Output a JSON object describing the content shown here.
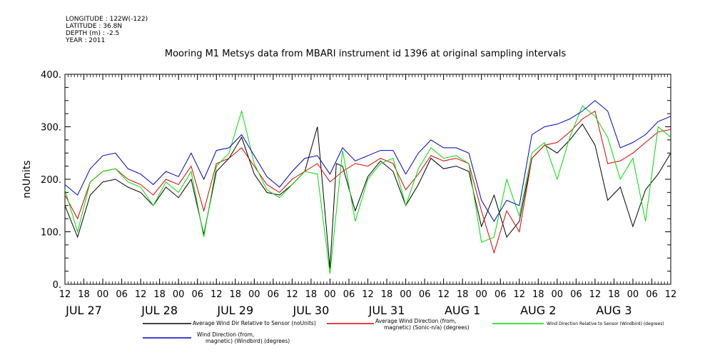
{
  "header": {
    "longitude": "LONGITUDE : 122W(-122)",
    "latitude": "LATITUDE : 36.8N",
    "depth": "DEPTH (m) : -2.5",
    "year": "YEAR : 2011"
  },
  "chart_data": {
    "type": "line",
    "title": "Mooring M1 Metsys data from MBARI instrument id 1396 at original sampling intervals",
    "ylabel": "noUnits",
    "ylim": [
      0,
      400
    ],
    "y_ticks": [
      "0.",
      "100.",
      "200.",
      "300.",
      "400."
    ],
    "y_tick_values": [
      0,
      100,
      200,
      300,
      400
    ],
    "x_hour_ticks": [
      "12",
      "18",
      "00",
      "06",
      "12",
      "18",
      "00",
      "06",
      "12",
      "18",
      "00",
      "06",
      "12",
      "18",
      "00",
      "06",
      "12",
      "18",
      "00",
      "06",
      "12",
      "18",
      "00",
      "06",
      "12",
      "18",
      "00",
      "06",
      "12",
      "18",
      "00",
      "06",
      "12"
    ],
    "x_day_labels": [
      "JUL 27",
      "JUL 28",
      "JUL 29",
      "JUL 30",
      "JUL 31",
      "AUG  1",
      "AUG  2",
      "AUG  3"
    ],
    "x_range_hours": [
      0,
      192
    ],
    "colors": {
      "black": "#000000",
      "red": "#dd0000",
      "green": "#00dd00",
      "blue": "#0000cc"
    },
    "series": [
      {
        "name": "Average Wind Dir Relative to Sensor (noUnits)",
        "color": "#000000",
        "x": [
          0,
          4,
          8,
          12,
          16,
          20,
          24,
          28,
          32,
          36,
          40,
          44,
          48,
          52,
          56,
          60,
          64,
          68,
          72,
          76,
          80,
          84,
          86,
          88,
          92,
          96,
          100,
          104,
          108,
          112,
          116,
          120,
          124,
          128,
          132,
          136,
          140,
          144,
          148,
          152,
          156,
          160,
          164,
          168,
          172,
          176,
          180,
          184,
          188,
          192
        ],
        "values": [
          150,
          90,
          170,
          195,
          200,
          185,
          175,
          150,
          185,
          165,
          200,
          95,
          215,
          240,
          280,
          210,
          175,
          170,
          190,
          215,
          300,
          30,
          230,
          225,
          140,
          205,
          235,
          215,
          150,
          190,
          240,
          220,
          225,
          215,
          110,
          170,
          90,
          120,
          240,
          265,
          250,
          275,
          305,
          265,
          160,
          185,
          110,
          180,
          210,
          250
        ]
      },
      {
        "name": "Average Wind Direction (from, magnetic) (Sonic-n/a) (degrees)",
        "color": "#dd0000",
        "x": [
          0,
          4,
          8,
          12,
          16,
          20,
          24,
          28,
          32,
          36,
          40,
          44,
          48,
          52,
          56,
          60,
          64,
          68,
          72,
          76,
          80,
          84,
          88,
          92,
          96,
          100,
          104,
          108,
          112,
          116,
          120,
          124,
          128,
          132,
          136,
          140,
          144,
          148,
          152,
          156,
          160,
          164,
          168,
          172,
          176,
          180,
          184,
          188,
          192
        ],
        "values": [
          170,
          125,
          195,
          215,
          220,
          200,
          190,
          170,
          200,
          190,
          225,
          140,
          230,
          240,
          260,
          225,
          190,
          175,
          200,
          215,
          230,
          195,
          215,
          230,
          225,
          240,
          230,
          180,
          210,
          245,
          235,
          240,
          230,
          140,
          60,
          140,
          100,
          240,
          265,
          270,
          290,
          315,
          330,
          230,
          235,
          250,
          270,
          290,
          295
        ]
      },
      {
        "name": "Wind Direction Relative to Sensor (Windbird) (degrees)",
        "color": "#00dd00",
        "x": [
          0,
          4,
          8,
          12,
          16,
          20,
          24,
          28,
          32,
          36,
          40,
          44,
          48,
          52,
          56,
          60,
          64,
          68,
          72,
          76,
          80,
          84,
          88,
          92,
          96,
          100,
          104,
          108,
          112,
          116,
          120,
          124,
          128,
          132,
          136,
          140,
          144,
          148,
          152,
          156,
          160,
          164,
          168,
          172,
          176,
          180,
          184,
          188,
          192
        ],
        "values": [
          180,
          100,
          195,
          215,
          220,
          195,
          185,
          150,
          195,
          175,
          215,
          90,
          225,
          250,
          330,
          230,
          180,
          165,
          190,
          215,
          210,
          20,
          255,
          120,
          200,
          230,
          240,
          150,
          220,
          260,
          240,
          245,
          230,
          80,
          90,
          200,
          130,
          250,
          270,
          200,
          280,
          340,
          320,
          280,
          200,
          240,
          120,
          300,
          280
        ]
      },
      {
        "name": "Wind Direction (from, magnetic) (Windbird) (degrees)",
        "color": "#0000cc",
        "x": [
          0,
          4,
          8,
          12,
          16,
          20,
          24,
          28,
          32,
          36,
          40,
          44,
          48,
          52,
          56,
          60,
          64,
          68,
          72,
          76,
          80,
          84,
          88,
          92,
          96,
          100,
          104,
          108,
          112,
          116,
          120,
          124,
          128,
          132,
          136,
          140,
          144,
          148,
          152,
          156,
          160,
          164,
          168,
          172,
          176,
          180,
          184,
          188,
          192
        ],
        "values": [
          190,
          170,
          220,
          245,
          250,
          220,
          210,
          190,
          215,
          205,
          250,
          200,
          255,
          260,
          285,
          245,
          205,
          185,
          215,
          240,
          245,
          210,
          260,
          235,
          245,
          255,
          255,
          210,
          250,
          275,
          260,
          260,
          250,
          160,
          120,
          160,
          150,
          285,
          300,
          305,
          315,
          330,
          350,
          330,
          260,
          270,
          285,
          310,
          320
        ]
      }
    ],
    "legend": [
      {
        "text": "Average Wind Dir Relative to Sensor (noUnits)",
        "color": "#000000"
      },
      {
        "text": "Average Wind Direction (from,",
        "text2": "magnetic) (Sonic-n/a) (degrees)",
        "color": "#dd0000"
      },
      {
        "text": "Wind Direction Relative to Sensor (Windbird) (degrees)",
        "color": "#00dd00"
      },
      {
        "text": "Wind Direction (from,",
        "text2": "magnetic) (Windbird) (degrees)",
        "color": "#0000cc"
      }
    ]
  }
}
